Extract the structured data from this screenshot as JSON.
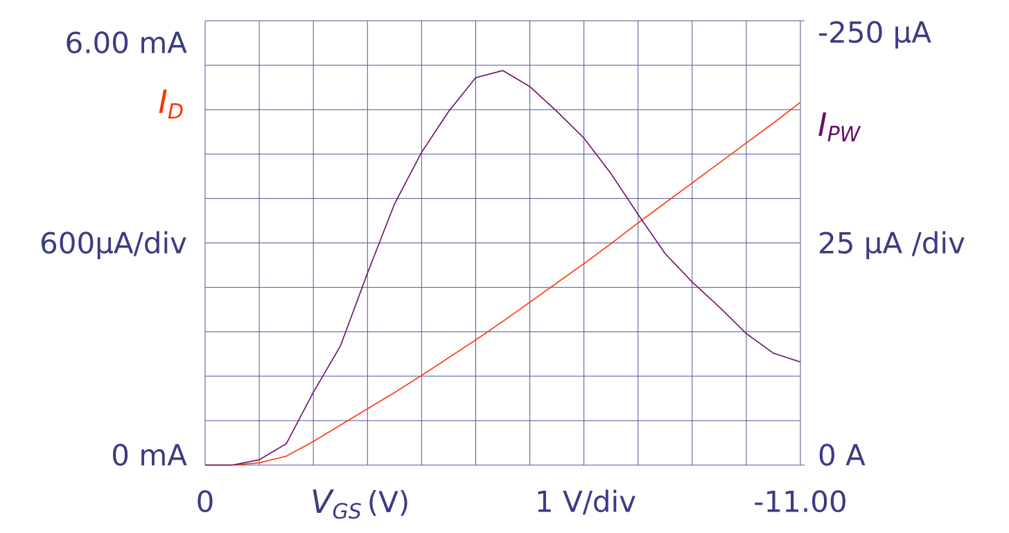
{
  "chart_data": {
    "type": "line",
    "x_label": {
      "symbol": "V",
      "subscript": "GS",
      "unit": "(V)"
    },
    "x_scale_note": "1 V/div",
    "y_scale_note": "600µA/div",
    "y2_scale_note": "25 µA /div",
    "x": [
      0,
      -0.5,
      -1,
      -1.5,
      -2,
      -2.5,
      -3,
      -3.5,
      -4,
      -4.5,
      -5,
      -5.5,
      -6,
      -6.5,
      -7,
      -7.5,
      -8,
      -8.5,
      -9,
      -9.5,
      -10,
      -10.5,
      -11
    ],
    "xlim": [
      0,
      -11
    ],
    "xticks": [
      0,
      {
        "value": -1,
        "label": null
      },
      {
        "value": -2,
        "label": null
      },
      {
        "value": -3,
        "label": null
      },
      {
        "value": -4,
        "label": null
      },
      {
        "value": -5,
        "label": null
      },
      {
        "value": -6,
        "label": null
      },
      {
        "value": -7,
        "label": null
      },
      {
        "value": -8,
        "label": null
      },
      {
        "value": -9,
        "label": null
      },
      {
        "value": -10,
        "label": null
      },
      {
        "value": -11,
        "label": "-11.00"
      }
    ],
    "ylim": [
      0,
      6
    ],
    "yticks": [
      {
        "value": 0,
        "label": "0 mA"
      },
      {
        "value": 0.6,
        "label": null
      },
      {
        "value": 1.2,
        "label": null
      },
      {
        "value": 1.8,
        "label": null
      },
      {
        "value": 2.4,
        "label": null
      },
      {
        "value": 3.0,
        "label": null
      },
      {
        "value": 3.6,
        "label": null
      },
      {
        "value": 4.2,
        "label": null
      },
      {
        "value": 4.8,
        "label": null
      },
      {
        "value": 5.4,
        "label": null
      },
      {
        "value": 6,
        "label": "6.00 mA"
      }
    ],
    "y2lim": [
      0,
      -250
    ],
    "y2ticks": [
      {
        "value": 0,
        "label": "0 A"
      },
      {
        "value": -250,
        "label": "-250 µA"
      }
    ],
    "grid": true,
    "series": [
      {
        "name": {
          "symbol": "I",
          "subscript": "D"
        },
        "color": "#ff3300",
        "values": [
          0,
          0,
          0.03,
          0.12,
          0.32,
          0.54,
          0.76,
          0.98,
          1.21,
          1.45,
          1.69,
          1.94,
          2.2,
          2.46,
          2.72,
          2.99,
          3.27,
          3.54,
          3.81,
          4.08,
          4.35,
          4.62,
          4.9
        ]
      },
      {
        "name": {
          "symbol": "I",
          "subscript": "PW"
        },
        "color": "#6a0d6a",
        "axis": "y2",
        "values": [
          0,
          0,
          -3,
          -12,
          -41,
          -67,
          -108,
          -147,
          -176,
          -199,
          -218,
          -222,
          -213,
          -199,
          -184,
          -164,
          -141,
          -119,
          -103,
          -89,
          -74,
          -63,
          -58
        ]
      }
    ]
  }
}
